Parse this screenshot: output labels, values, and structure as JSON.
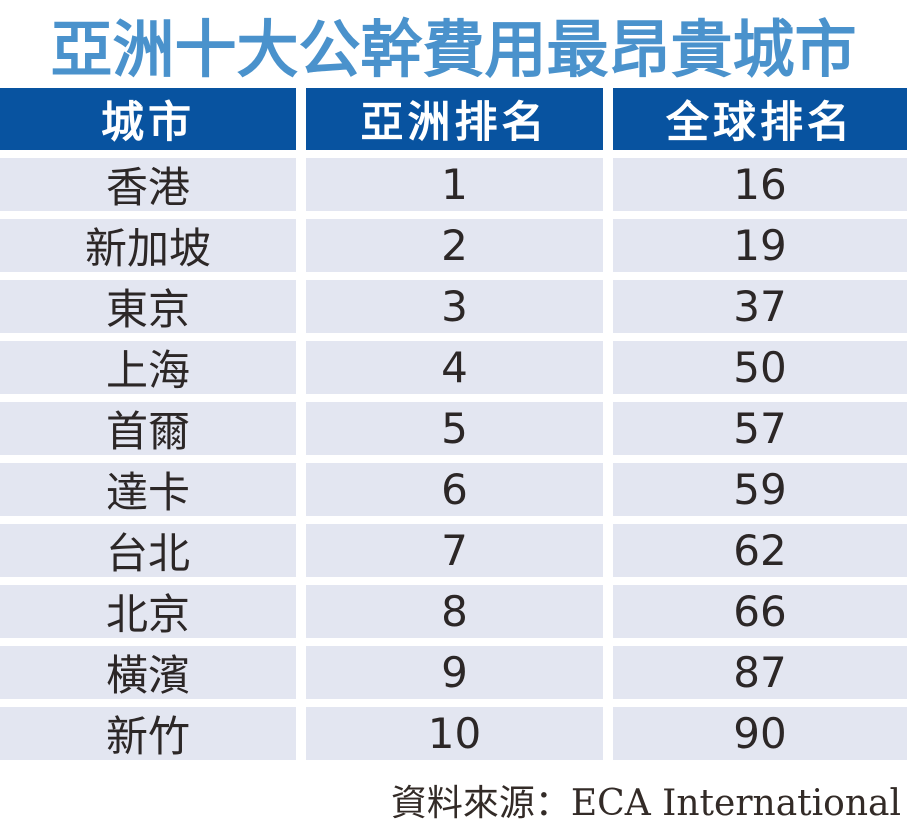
{
  "title": "亞洲十大公幹費用最昂貴城市",
  "colors": {
    "title_blue": "#4a92cc",
    "header_bg": "#0853a0",
    "header_text": "#ffffff",
    "row_bg": "#e3e6f1",
    "cell_text": "#2c2727",
    "source_text": "#332b27"
  },
  "table": {
    "columns": [
      {
        "label": "城市"
      },
      {
        "label": "亞洲排名"
      },
      {
        "label": "全球排名"
      }
    ],
    "rows": [
      {
        "city": "香港",
        "asia_rank": "1",
        "global_rank": "16"
      },
      {
        "city": "新加坡",
        "asia_rank": "2",
        "global_rank": "19"
      },
      {
        "city": "東京",
        "asia_rank": "3",
        "global_rank": "37"
      },
      {
        "city": "上海",
        "asia_rank": "4",
        "global_rank": "50"
      },
      {
        "city": "首爾",
        "asia_rank": "5",
        "global_rank": "57"
      },
      {
        "city": "達卡",
        "asia_rank": "6",
        "global_rank": "59"
      },
      {
        "city": "台北",
        "asia_rank": "7",
        "global_rank": "62"
      },
      {
        "city": "北京",
        "asia_rank": "8",
        "global_rank": "66"
      },
      {
        "city": "橫濱",
        "asia_rank": "9",
        "global_rank": "87"
      },
      {
        "city": "新竹",
        "asia_rank": "10",
        "global_rank": "90"
      }
    ]
  },
  "source": {
    "label": "資料來源：ECA International"
  },
  "chart_data": {
    "type": "table",
    "title": "亞洲十大公幹費用最昂貴城市",
    "columns": [
      "城市",
      "亞洲排名",
      "全球排名"
    ],
    "rows": [
      [
        "香港",
        1,
        16
      ],
      [
        "新加坡",
        2,
        19
      ],
      [
        "東京",
        3,
        37
      ],
      [
        "上海",
        4,
        50
      ],
      [
        "首爾",
        5,
        57
      ],
      [
        "達卡",
        6,
        59
      ],
      [
        "台北",
        7,
        62
      ],
      [
        "北京",
        8,
        66
      ],
      [
        "橫濱",
        9,
        87
      ],
      [
        "新竹",
        10,
        90
      ]
    ],
    "source": "ECA International"
  }
}
